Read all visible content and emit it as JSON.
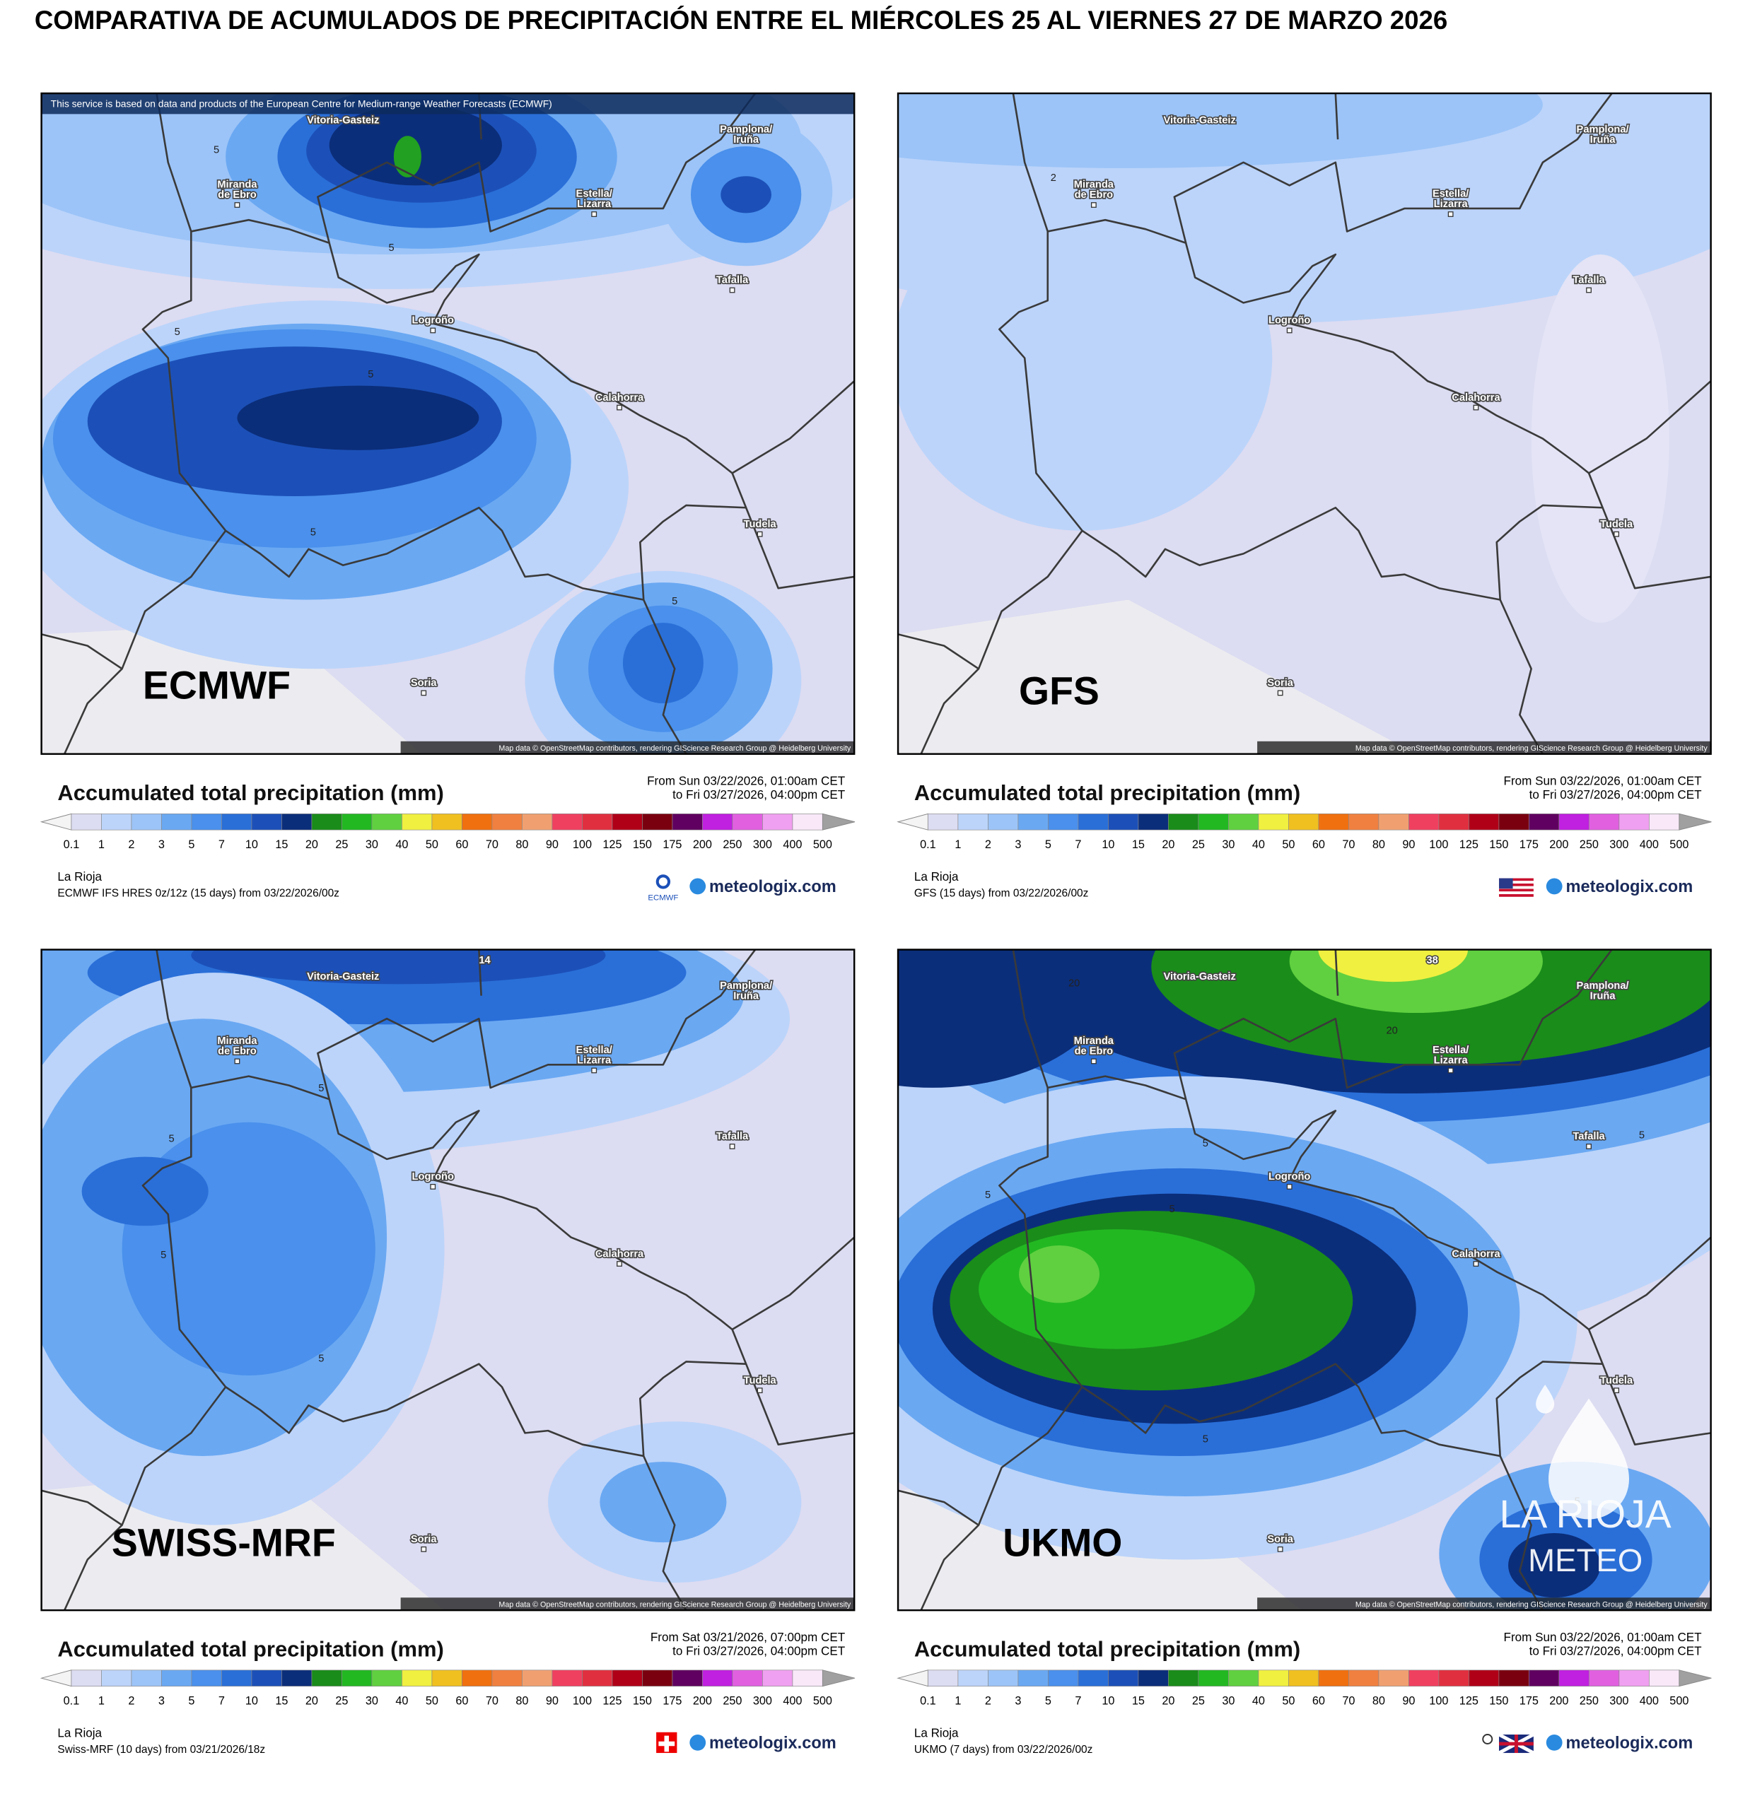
{
  "title": "COMPARATIVA DE ACUMULADOS DE PRECIPITACIÓN ENTRE EL MIÉRCOLES 25 AL VIERNES 27 DE MARZO 2026",
  "places": [
    {
      "lines": [
        "Vitoria-Gasteiz"
      ]
    },
    {
      "lines": [
        "Miranda",
        "de Ebro"
      ]
    },
    {
      "lines": [
        "Pamplona/",
        "Iruña"
      ]
    },
    {
      "lines": [
        "Estella/",
        "Lizarra"
      ]
    },
    {
      "lines": [
        "Tafalla"
      ]
    },
    {
      "lines": [
        "Logroño"
      ]
    },
    {
      "lines": [
        "Calahorra"
      ]
    },
    {
      "lines": [
        "Tudela"
      ]
    },
    {
      "lines": [
        "Soria"
      ]
    }
  ],
  "legend": {
    "title": "Accumulated total precipitation (mm)",
    "region": "La Rioja",
    "brand": "meteologix.com",
    "map_credit": "Map data © OpenStreetMap contributors, rendering GIScience Research Group @ Heidelberg University",
    "scale_labels": [
      "0.1",
      "1",
      "2",
      "3",
      "5",
      "7",
      "10",
      "15",
      "20",
      "25",
      "30",
      "40",
      "50",
      "60",
      "70",
      "80",
      "90",
      "100",
      "125",
      "150",
      "175",
      "200",
      "250",
      "300",
      "400",
      "500"
    ],
    "scale_colors": [
      "#dcdcf2",
      "#bcd4fa",
      "#9cc4f8",
      "#6aa8f2",
      "#4a90ec",
      "#2a6fd8",
      "#1c50b8",
      "#0b2e7a",
      "#1a8c1a",
      "#22b822",
      "#60d040",
      "#f0f040",
      "#f0c020",
      "#f07010",
      "#f08040",
      "#f0a070",
      "#f04060",
      "#e03040",
      "#b00018",
      "#7a0010",
      "#600060",
      "#c020e0",
      "#e060e0",
      "#f0a0f0",
      "#f8e8f8"
    ],
    "arrow_colors": [
      "#f4f4f4",
      "#a0a0a0"
    ]
  },
  "panels": [
    {
      "model": "ECMWF",
      "notice": "This service is based on data and products of the European Centre for Medium-range Weather Forecasts (ECMWF)",
      "period_from": "From Sun 03/22/2026, 01:00am CET",
      "period_to": "to Fri 03/27/2026, 04:00pm CET",
      "run": "ECMWF IFS HRES 0z/12z (15 days) from 03/22/2026/00z",
      "logo_text": "ECMWF",
      "contours": [
        "5",
        "5",
        "5",
        "5",
        "5",
        "5"
      ]
    },
    {
      "model": "GFS",
      "period_from": "From Sun 03/22/2026, 01:00am CET",
      "period_to": "to Fri 03/27/2026, 04:00pm CET",
      "run": "GFS (15 days) from 03/22/2026/00z",
      "contours": [
        "2"
      ]
    },
    {
      "model": "SWISS-MRF",
      "period_from": "From Sat 03/21/2026, 07:00pm CET",
      "period_to": "to Fri 03/27/2026, 04:00pm CET",
      "run": "Swiss-MRF (10 days) from 03/21/2026/18z",
      "contours": [
        "14",
        "5",
        "5",
        "5",
        "5"
      ]
    },
    {
      "model": "UKMO",
      "period_from": "From Sun 03/22/2026, 01:00am CET",
      "period_to": "to Fri 03/27/2026, 04:00pm CET",
      "run": "UKMO (7 days) from 03/22/2026/00z",
      "contours": [
        "38",
        "20",
        "20",
        "5",
        "5",
        "5",
        "5",
        "5",
        "5"
      ]
    }
  ],
  "watermark": [
    "LA RIOJA",
    "METEO"
  ]
}
